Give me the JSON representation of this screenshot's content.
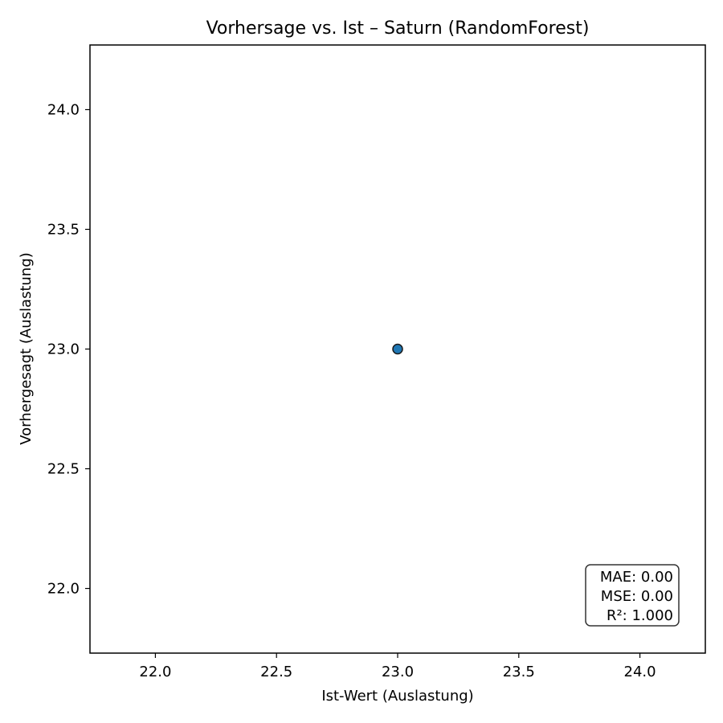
{
  "chart_data": {
    "type": "scatter",
    "title": "Vorhersage vs. Ist – Saturn (RandomForest)",
    "xlabel": "Ist-Wert (Auslastung)",
    "ylabel": "Vorhergesagt (Auslastung)",
    "xlim": [
      21.73,
      24.27
    ],
    "ylim": [
      21.73,
      24.27
    ],
    "xticks": [
      "22.0",
      "22.5",
      "23.0",
      "23.5",
      "24.0"
    ],
    "yticks": [
      "22.0",
      "22.5",
      "23.0",
      "23.5",
      "24.0"
    ],
    "grid": false,
    "series": [
      {
        "points": [
          {
            "x": 23.0,
            "y": 23.0
          }
        ],
        "color": "#1f77b4",
        "edgecolor": "#1a1a1a"
      }
    ],
    "annotation": {
      "lines": [
        "MAE: 0.00",
        "MSE: 0.00",
        "R²: 1.000"
      ],
      "position": "bottom-right"
    }
  }
}
